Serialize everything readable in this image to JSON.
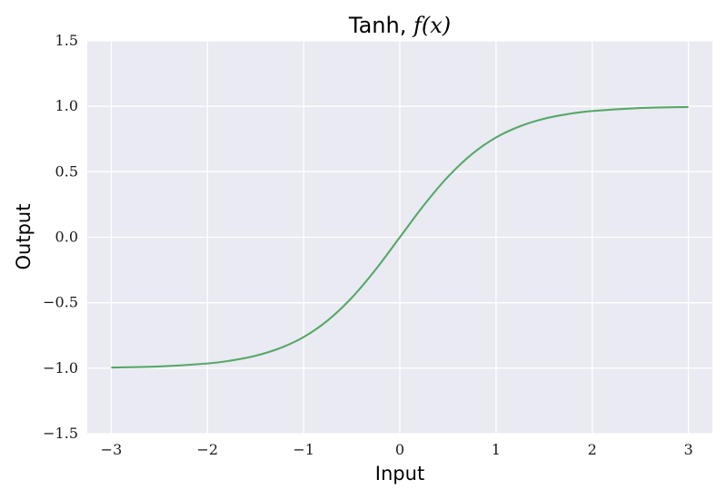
{
  "chart_data": {
    "type": "line",
    "title": "Tanh, f(x)",
    "title_parts": {
      "text": "Tanh, ",
      "function": "f(x)"
    },
    "xlabel": "Input",
    "ylabel": "Output",
    "xlim": [
      -3.25,
      3.25
    ],
    "ylim": [
      -1.5,
      1.5
    ],
    "x_ticks": [
      -3,
      -2,
      -1,
      0,
      1,
      2,
      3
    ],
    "x_tick_labels": [
      "−3",
      "−2",
      "−1",
      "0",
      "1",
      "2",
      "3"
    ],
    "y_ticks": [
      -1.5,
      -1.0,
      -0.5,
      0.0,
      0.5,
      1.0,
      1.5
    ],
    "y_tick_labels": [
      "−1.5",
      "−1.0",
      "−0.5",
      "0.0",
      "0.5",
      "1.0",
      "1.5"
    ],
    "grid": true,
    "background_color": "#eaeaf2",
    "series": [
      {
        "color": "#55a868",
        "x": [
          -3.0,
          -2.5,
          -2.0,
          -1.75,
          -1.5,
          -1.25,
          -1.0,
          -0.75,
          -0.5,
          -0.25,
          0.0,
          0.25,
          0.5,
          0.75,
          1.0,
          1.25,
          1.5,
          1.75,
          2.0,
          2.5,
          3.0
        ],
        "y": [
          -0.995,
          -0.987,
          -0.964,
          -0.941,
          -0.905,
          -0.848,
          -0.762,
          -0.635,
          -0.462,
          -0.245,
          0.0,
          0.245,
          0.462,
          0.635,
          0.762,
          0.848,
          0.905,
          0.941,
          0.964,
          0.987,
          0.995
        ]
      }
    ]
  }
}
